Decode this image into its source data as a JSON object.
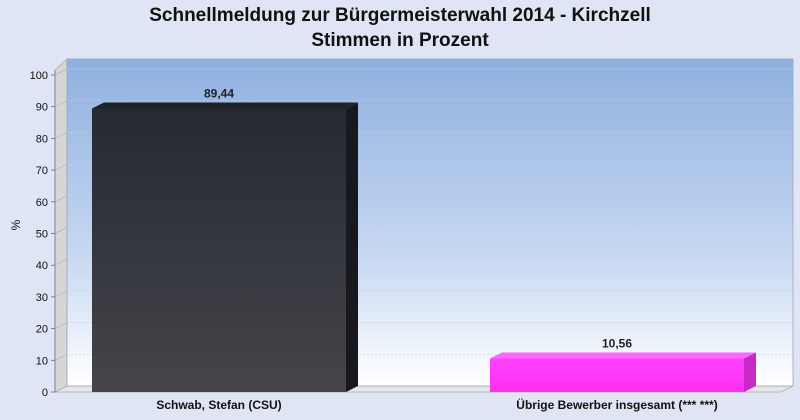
{
  "chart_data": {
    "type": "bar",
    "title_line1": "Schnellmeldung zur Bürgermeisterwahl 2014 - Kirchzell",
    "title_line2": "Stimmen in Prozent",
    "ylabel": "%",
    "xlabel": "",
    "ylim": [
      0,
      100
    ],
    "yticks": [
      0,
      10,
      20,
      30,
      40,
      50,
      60,
      70,
      80,
      90,
      100
    ],
    "categories": [
      "Schwab, Stefan (CSU)",
      "Übrige Bewerber insgesamt (***  ***)"
    ],
    "values": [
      89.44,
      10.56
    ],
    "value_labels": [
      "89,44",
      "10,56"
    ],
    "colors": [
      "#2e3138",
      "#ff3cff"
    ],
    "grid": true,
    "legend": "none"
  }
}
